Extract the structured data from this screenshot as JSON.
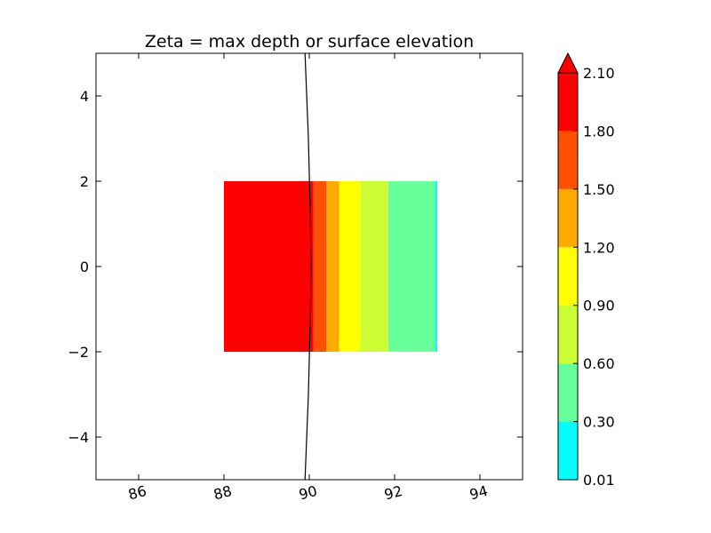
{
  "chart_data": {
    "type": "heatmap",
    "title": "Zeta = max depth or surface elevation",
    "xlabel": "",
    "ylabel": "",
    "xlim": [
      85,
      95
    ],
    "ylim": [
      -5,
      5
    ],
    "x_ticks": [
      "86",
      "88",
      "90",
      "92",
      "94"
    ],
    "x_tick_values": [
      86,
      88,
      90,
      92,
      94
    ],
    "y_ticks": [
      "4",
      "2",
      "0",
      "−2",
      "−4"
    ],
    "y_tick_values": [
      4,
      2,
      0,
      -2,
      -4
    ],
    "grid": false,
    "bands": [
      {
        "x0": 88.0,
        "x1": 90.1,
        "y0": -2,
        "y1": 2,
        "color": "#ff0000",
        "level_range": [
          1.8,
          2.1
        ]
      },
      {
        "x0": 90.1,
        "x1": 90.4,
        "y0": -2,
        "y1": 2,
        "color": "#ff5000",
        "level_range": [
          1.5,
          1.8
        ]
      },
      {
        "x0": 90.4,
        "x1": 90.7,
        "y0": -2,
        "y1": 2,
        "color": "#ffaa00",
        "level_range": [
          1.2,
          1.5
        ]
      },
      {
        "x0": 90.7,
        "x1": 91.2,
        "y0": -2,
        "y1": 2,
        "color": "#ffff00",
        "level_range": [
          0.9,
          1.2
        ]
      },
      {
        "x0": 91.2,
        "x1": 91.85,
        "y0": -2,
        "y1": 2,
        "color": "#ccff33",
        "level_range": [
          0.6,
          0.9
        ]
      },
      {
        "x0": 91.85,
        "x1": 92.95,
        "y0": -2,
        "y1": 2,
        "color": "#66ff99",
        "level_range": [
          0.3,
          0.6
        ]
      },
      {
        "x0": 92.95,
        "x1": 93.0,
        "y0": -2,
        "y1": 2,
        "color": "#00ffff",
        "level_range": [
          0.01,
          0.3
        ]
      }
    ],
    "contour_line": {
      "color": "#000000",
      "points": [
        [
          89.9,
          5
        ],
        [
          89.98,
          3
        ],
        [
          90.03,
          1
        ],
        [
          90.04,
          0
        ],
        [
          90.03,
          -1
        ],
        [
          89.98,
          -3
        ],
        [
          89.9,
          -5
        ]
      ]
    },
    "colorbar": {
      "levels": [
        "0.01",
        "0.30",
        "0.60",
        "0.90",
        "1.20",
        "1.50",
        "1.80",
        "2.10"
      ],
      "colors": [
        "#00ffff",
        "#66ff99",
        "#ccff33",
        "#ffff00",
        "#ffaa00",
        "#ff5000",
        "#ff0000"
      ],
      "extend": "max",
      "extend_color": "#ff0000"
    }
  }
}
